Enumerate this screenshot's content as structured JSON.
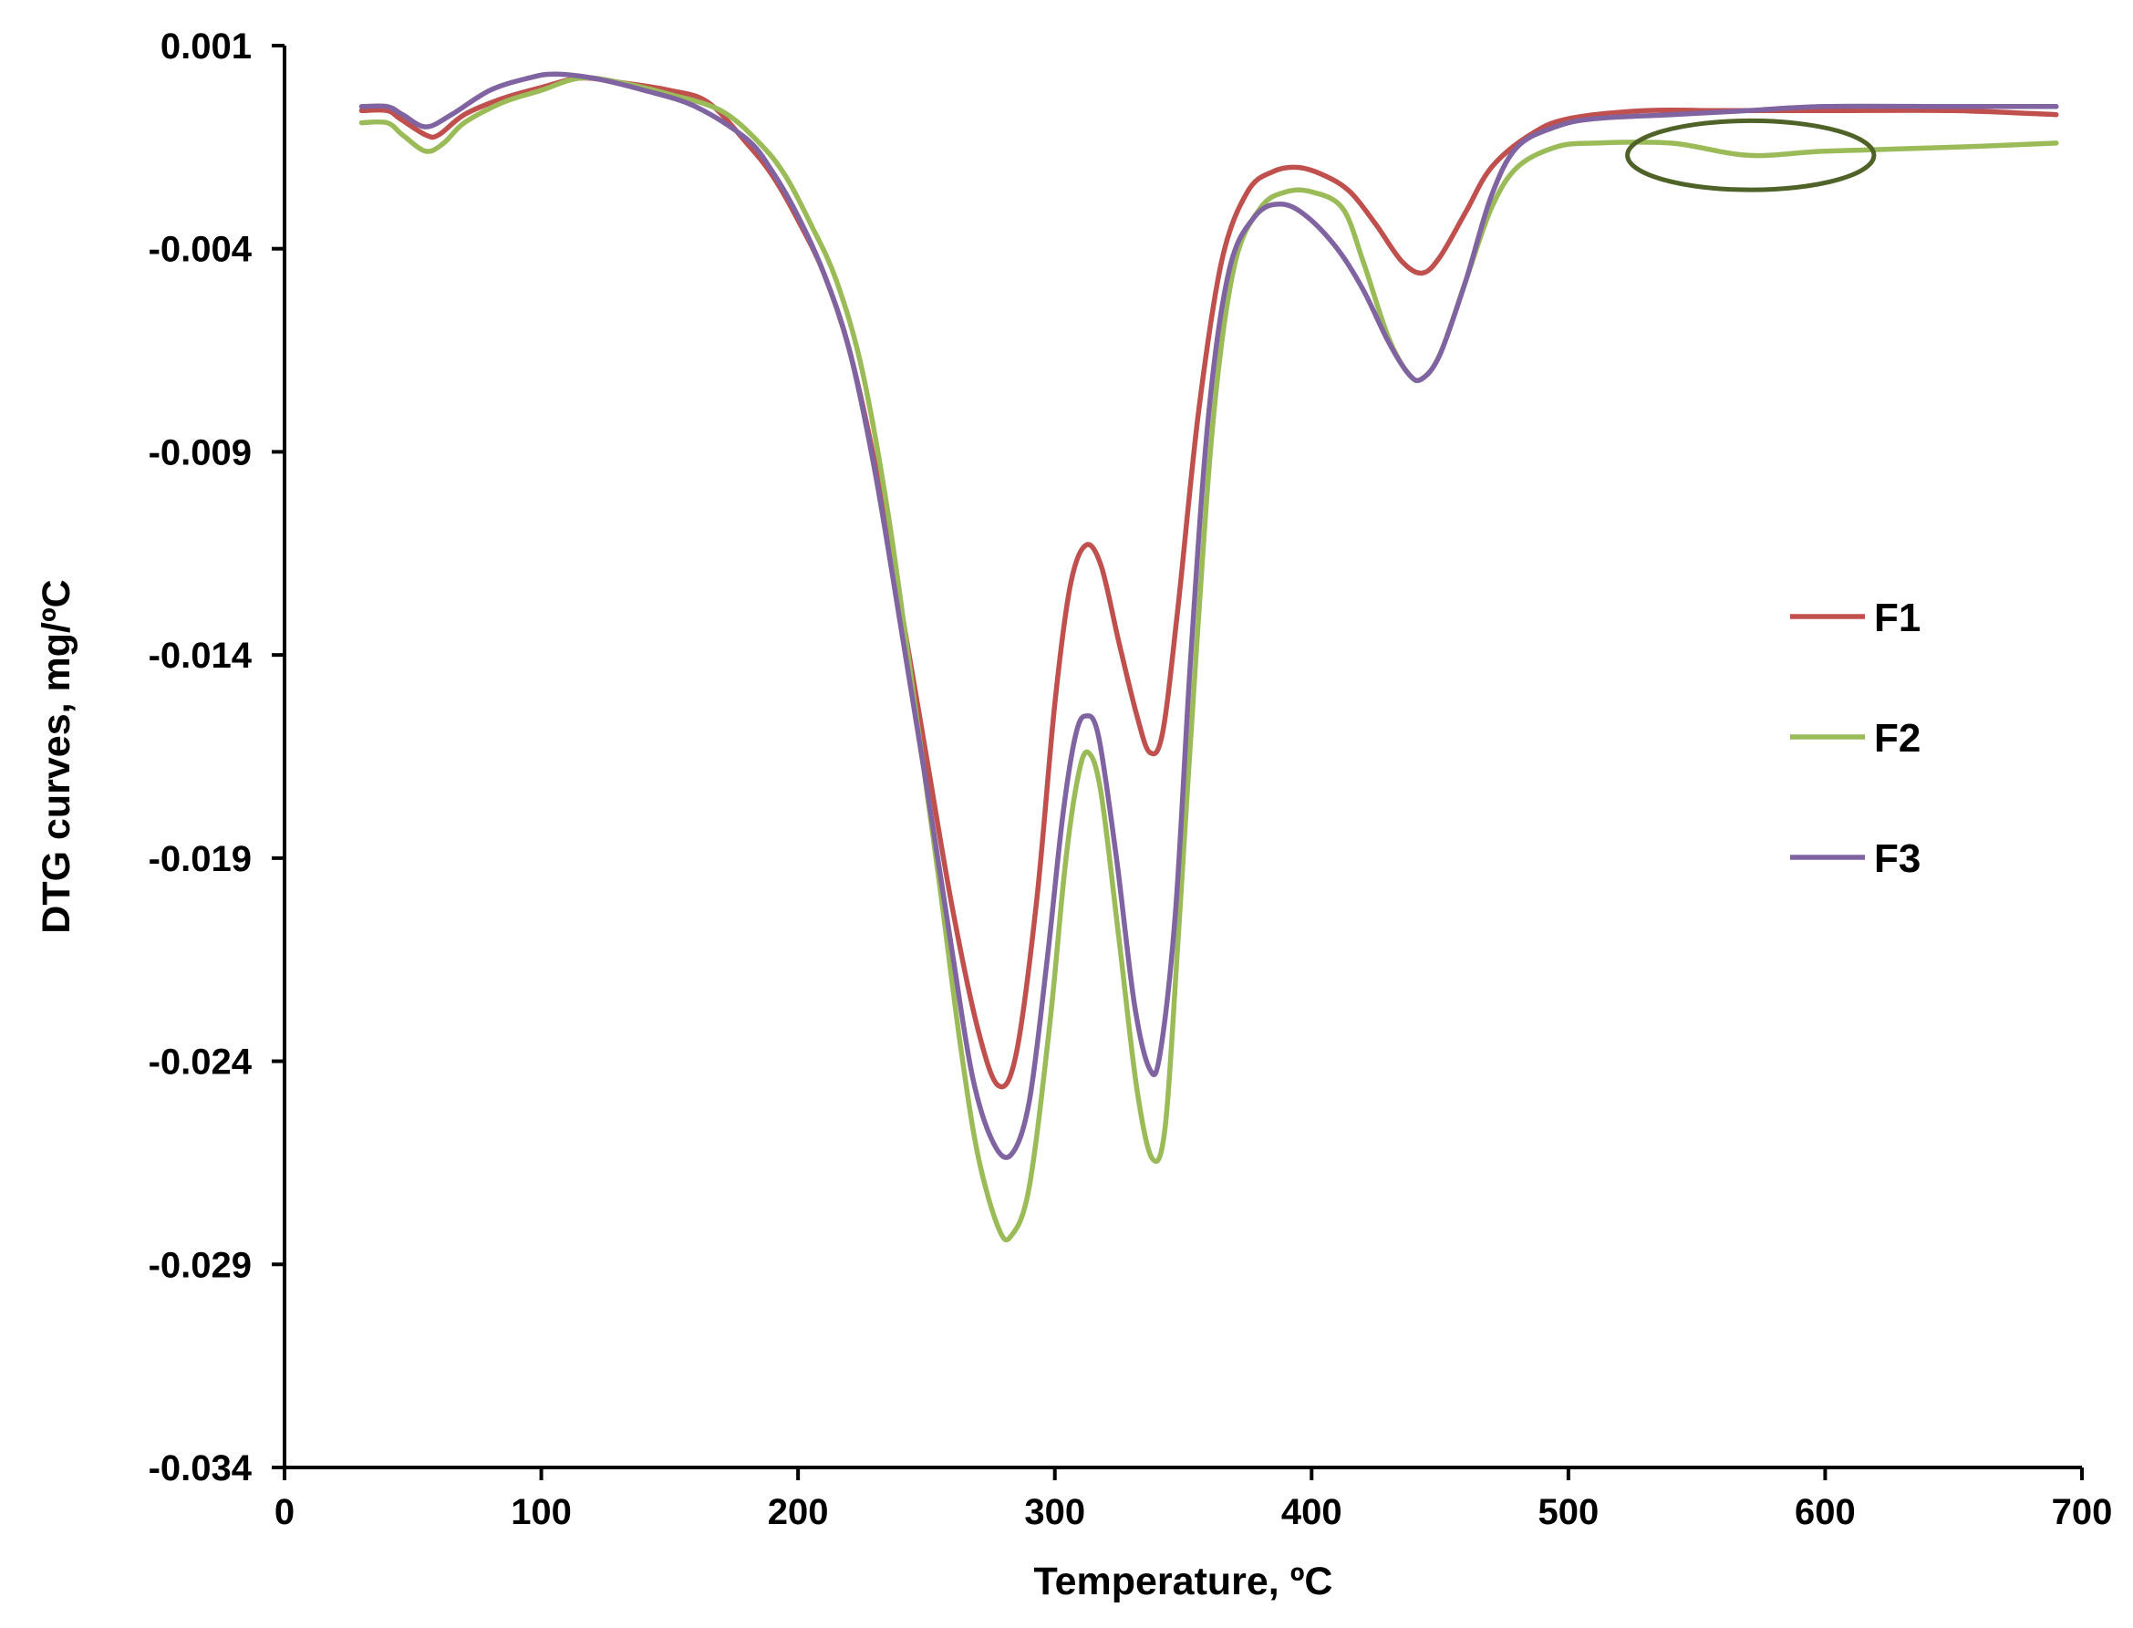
{
  "chart_data": {
    "type": "line",
    "title": "",
    "xlabel": "Temperature, ºC",
    "ylabel": "DTG curves, mg/ºC",
    "xlim": [
      0,
      700
    ],
    "ylim": [
      -0.034,
      0.001
    ],
    "x_ticks": [
      0,
      100,
      200,
      300,
      400,
      500,
      600,
      700
    ],
    "x_tick_labels": [
      "0",
      "100",
      "200",
      "300",
      "400",
      "500",
      "600",
      "700"
    ],
    "y_ticks": [
      0.001,
      -0.004,
      -0.009,
      -0.014,
      -0.019,
      -0.024,
      -0.029,
      -0.034
    ],
    "y_tick_labels": [
      "0.001",
      "-0.004",
      "-0.009",
      "-0.014",
      "-0.019",
      "-0.024",
      "-0.029",
      "-0.034"
    ],
    "grid": false,
    "legend": "right",
    "series": [
      {
        "name": "F1",
        "color": "#c0504d",
        "points": [
          [
            30,
            -0.0006
          ],
          [
            40,
            -0.0006
          ],
          [
            45,
            -0.0008
          ],
          [
            55,
            -0.0012
          ],
          [
            60,
            -0.0012
          ],
          [
            70,
            -0.0007
          ],
          [
            85,
            -0.0003
          ],
          [
            100,
            -3e-05
          ],
          [
            115,
            0.0002
          ],
          [
            130,
            0.0001
          ],
          [
            150,
            -0.0001
          ],
          [
            165,
            -0.0004
          ],
          [
            180,
            -0.0014
          ],
          [
            190,
            -0.0022
          ],
          [
            200,
            -0.0033
          ],
          [
            210,
            -0.0046
          ],
          [
            220,
            -0.0065
          ],
          [
            230,
            -0.0093
          ],
          [
            240,
            -0.0128
          ],
          [
            250,
            -0.0165
          ],
          [
            260,
            -0.0202
          ],
          [
            270,
            -0.0232
          ],
          [
            278,
            -0.0246
          ],
          [
            285,
            -0.0238
          ],
          [
            293,
            -0.02
          ],
          [
            300,
            -0.0152
          ],
          [
            306,
            -0.0123
          ],
          [
            312,
            -0.0113
          ],
          [
            318,
            -0.0118
          ],
          [
            325,
            -0.0137
          ],
          [
            332,
            -0.0155
          ],
          [
            337,
            -0.0164
          ],
          [
            342,
            -0.0159
          ],
          [
            348,
            -0.0128
          ],
          [
            356,
            -0.008
          ],
          [
            365,
            -0.0043
          ],
          [
            375,
            -0.0026
          ],
          [
            385,
            -0.0021
          ],
          [
            395,
            -0.002
          ],
          [
            405,
            -0.0022
          ],
          [
            415,
            -0.0026
          ],
          [
            425,
            -0.0034
          ],
          [
            435,
            -0.0043
          ],
          [
            443,
            -0.0046
          ],
          [
            450,
            -0.0042
          ],
          [
            460,
            -0.0031
          ],
          [
            470,
            -0.002
          ],
          [
            485,
            -0.0012
          ],
          [
            500,
            -0.0008
          ],
          [
            530,
            -0.0006
          ],
          [
            560,
            -0.0006
          ],
          [
            600,
            -0.0006
          ],
          [
            650,
            -0.0006
          ],
          [
            690,
            -0.0007
          ]
        ]
      },
      {
        "name": "F2",
        "color": "#9bbb59",
        "points": [
          [
            30,
            -0.0009
          ],
          [
            40,
            -0.0009
          ],
          [
            46,
            -0.0012
          ],
          [
            55,
            -0.0016
          ],
          [
            62,
            -0.0014
          ],
          [
            70,
            -0.0009
          ],
          [
            85,
            -0.0004
          ],
          [
            100,
            -0.0001
          ],
          [
            115,
            0.0002
          ],
          [
            130,
            0.0001
          ],
          [
            150,
            -0.0002
          ],
          [
            170,
            -0.0006
          ],
          [
            185,
            -0.0014
          ],
          [
            195,
            -0.0022
          ],
          [
            205,
            -0.0034
          ],
          [
            215,
            -0.0048
          ],
          [
            225,
            -0.007
          ],
          [
            235,
            -0.0105
          ],
          [
            245,
            -0.015
          ],
          [
            255,
            -0.0196
          ],
          [
            263,
            -0.0235
          ],
          [
            270,
            -0.0263
          ],
          [
            278,
            -0.0281
          ],
          [
            283,
            -0.0283
          ],
          [
            290,
            -0.0271
          ],
          [
            298,
            -0.0231
          ],
          [
            304,
            -0.0192
          ],
          [
            309,
            -0.017
          ],
          [
            313,
            -0.0164
          ],
          [
            318,
            -0.0174
          ],
          [
            325,
            -0.021
          ],
          [
            332,
            -0.0247
          ],
          [
            338,
            -0.0264
          ],
          [
            343,
            -0.0256
          ],
          [
            348,
            -0.021
          ],
          [
            355,
            -0.014
          ],
          [
            362,
            -0.008
          ],
          [
            370,
            -0.0044
          ],
          [
            380,
            -0.003
          ],
          [
            390,
            -0.0026
          ],
          [
            400,
            -0.0026
          ],
          [
            412,
            -0.003
          ],
          [
            420,
            -0.0043
          ],
          [
            430,
            -0.0062
          ],
          [
            438,
            -0.0071
          ],
          [
            443,
            -0.0072
          ],
          [
            450,
            -0.0066
          ],
          [
            460,
            -0.0048
          ],
          [
            470,
            -0.003
          ],
          [
            480,
            -0.002
          ],
          [
            495,
            -0.0015
          ],
          [
            510,
            -0.0014
          ],
          [
            540,
            -0.0014
          ],
          [
            570,
            -0.0017
          ],
          [
            600,
            -0.0016
          ],
          [
            650,
            -0.0015
          ],
          [
            690,
            -0.0014
          ]
        ]
      },
      {
        "name": "F3",
        "color": "#8064a2",
        "points": [
          [
            30,
            -0.0005
          ],
          [
            40,
            -0.0005
          ],
          [
            46,
            -0.0007
          ],
          [
            55,
            -0.001
          ],
          [
            65,
            -0.0007
          ],
          [
            80,
            -0.0001
          ],
          [
            95,
            0.0002
          ],
          [
            105,
            0.0003
          ],
          [
            120,
            0.0002
          ],
          [
            140,
            -0.0001
          ],
          [
            160,
            -0.0005
          ],
          [
            180,
            -0.0013
          ],
          [
            190,
            -0.0021
          ],
          [
            200,
            -0.0032
          ],
          [
            210,
            -0.0046
          ],
          [
            220,
            -0.0065
          ],
          [
            230,
            -0.0095
          ],
          [
            240,
            -0.0133
          ],
          [
            250,
            -0.0172
          ],
          [
            260,
            -0.0213
          ],
          [
            268,
            -0.0244
          ],
          [
            276,
            -0.026
          ],
          [
            283,
            -0.0263
          ],
          [
            290,
            -0.025
          ],
          [
            297,
            -0.0215
          ],
          [
            303,
            -0.018
          ],
          [
            308,
            -0.016
          ],
          [
            312,
            -0.0155
          ],
          [
            317,
            -0.016
          ],
          [
            324,
            -0.019
          ],
          [
            331,
            -0.0226
          ],
          [
            337,
            -0.0242
          ],
          [
            341,
            -0.0238
          ],
          [
            347,
            -0.0203
          ],
          [
            353,
            -0.014
          ],
          [
            360,
            -0.008
          ],
          [
            368,
            -0.0045
          ],
          [
            378,
            -0.0032
          ],
          [
            388,
            -0.0029
          ],
          [
            398,
            -0.0032
          ],
          [
            410,
            -0.004
          ],
          [
            420,
            -0.005
          ],
          [
            430,
            -0.0063
          ],
          [
            438,
            -0.0071
          ],
          [
            443,
            -0.0072
          ],
          [
            450,
            -0.0066
          ],
          [
            460,
            -0.0048
          ],
          [
            470,
            -0.0027
          ],
          [
            480,
            -0.0015
          ],
          [
            495,
            -0.001
          ],
          [
            510,
            -0.0008
          ],
          [
            540,
            -0.0007
          ],
          [
            570,
            -0.0006
          ],
          [
            600,
            -0.0005
          ],
          [
            650,
            -0.0005
          ],
          [
            690,
            -0.0005
          ]
        ]
      }
    ],
    "annotations": [
      {
        "shape": "ellipse",
        "color": "#4f6228",
        "center": [
          571,
          -0.0017
        ],
        "radius_x": 48,
        "radius_y": 0.00085
      }
    ]
  }
}
